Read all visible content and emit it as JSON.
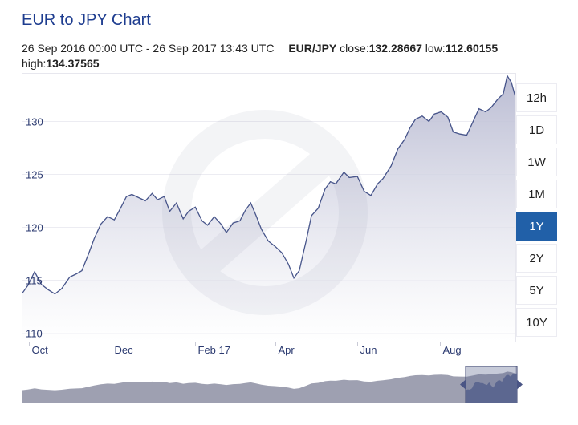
{
  "title": "EUR to JPY Chart",
  "info": {
    "range_text": "26 Sep 2016 00:00 UTC - 26 Sep 2017 13:43 UTC",
    "pair": "EUR/JPY",
    "close_label": "close:",
    "close_value": "132.28667",
    "low_label": "low:",
    "low_value": "112.60155",
    "high_label": "high:",
    "high_value": "134.37565"
  },
  "range_buttons": [
    {
      "label": "12h",
      "active": false
    },
    {
      "label": "1D",
      "active": false
    },
    {
      "label": "1W",
      "active": false
    },
    {
      "label": "1M",
      "active": false
    },
    {
      "label": "1Y",
      "active": true
    },
    {
      "label": "2Y",
      "active": false
    },
    {
      "label": "5Y",
      "active": false
    },
    {
      "label": "10Y",
      "active": false
    }
  ],
  "colors": {
    "line": "#46548a",
    "fill_top": "#b7b9d1",
    "fill_bottom": "#ffffff",
    "active_button": "#2160a8",
    "navigator_fill": "#9ea0b1",
    "navigator_selected": "#5c6790",
    "title": "#1d3c8f"
  },
  "chart_data": {
    "type": "area",
    "series": [
      {
        "name": "EUR/JPY",
        "points": [
          [
            "2016-09-26",
            113.8
          ],
          [
            "2016-09-30",
            114.5
          ],
          [
            "2016-10-05",
            115.8
          ],
          [
            "2016-10-10",
            114.6
          ],
          [
            "2016-10-15",
            114.1
          ],
          [
            "2016-10-20",
            113.7
          ],
          [
            "2016-10-25",
            114.2
          ],
          [
            "2016-10-31",
            115.3
          ],
          [
            "2016-11-05",
            115.6
          ],
          [
            "2016-11-09",
            115.9
          ],
          [
            "2016-11-14",
            117.5
          ],
          [
            "2016-11-18",
            118.9
          ],
          [
            "2016-11-23",
            120.3
          ],
          [
            "2016-11-28",
            121.0
          ],
          [
            "2016-12-03",
            120.7
          ],
          [
            "2016-12-08",
            121.9
          ],
          [
            "2016-12-12",
            122.9
          ],
          [
            "2016-12-16",
            123.1
          ],
          [
            "2016-12-21",
            122.8
          ],
          [
            "2016-12-26",
            122.5
          ],
          [
            "2016-12-31",
            123.2
          ],
          [
            "2017-01-04",
            122.6
          ],
          [
            "2017-01-09",
            122.9
          ],
          [
            "2017-01-13",
            121.5
          ],
          [
            "2017-01-18",
            122.3
          ],
          [
            "2017-01-23",
            120.8
          ],
          [
            "2017-01-27",
            121.5
          ],
          [
            "2017-02-01",
            121.9
          ],
          [
            "2017-02-06",
            120.6
          ],
          [
            "2017-02-10",
            120.2
          ],
          [
            "2017-02-15",
            121.0
          ],
          [
            "2017-02-20",
            120.3
          ],
          [
            "2017-02-24",
            119.5
          ],
          [
            "2017-03-01",
            120.4
          ],
          [
            "2017-03-06",
            120.6
          ],
          [
            "2017-03-10",
            121.6
          ],
          [
            "2017-03-14",
            122.3
          ],
          [
            "2017-03-18",
            121.1
          ],
          [
            "2017-03-22",
            119.8
          ],
          [
            "2017-03-27",
            118.7
          ],
          [
            "2017-04-01",
            118.2
          ],
          [
            "2017-04-06",
            117.6
          ],
          [
            "2017-04-11",
            116.5
          ],
          [
            "2017-04-15",
            115.2
          ],
          [
            "2017-04-19",
            115.9
          ],
          [
            "2017-04-24",
            118.7
          ],
          [
            "2017-04-28",
            121.1
          ],
          [
            "2017-05-03",
            121.8
          ],
          [
            "2017-05-08",
            123.6
          ],
          [
            "2017-05-12",
            124.3
          ],
          [
            "2017-05-16",
            124.1
          ],
          [
            "2017-05-22",
            125.2
          ],
          [
            "2017-05-26",
            124.7
          ],
          [
            "2017-06-01",
            124.8
          ],
          [
            "2017-06-06",
            123.4
          ],
          [
            "2017-06-11",
            123.0
          ],
          [
            "2017-06-16",
            124.1
          ],
          [
            "2017-06-20",
            124.6
          ],
          [
            "2017-06-26",
            125.8
          ],
          [
            "2017-07-01",
            127.4
          ],
          [
            "2017-07-06",
            128.3
          ],
          [
            "2017-07-10",
            129.4
          ],
          [
            "2017-07-14",
            130.2
          ],
          [
            "2017-07-19",
            130.5
          ],
          [
            "2017-07-24",
            130.0
          ],
          [
            "2017-07-28",
            130.7
          ],
          [
            "2017-08-02",
            130.9
          ],
          [
            "2017-08-07",
            130.4
          ],
          [
            "2017-08-11",
            129.0
          ],
          [
            "2017-08-16",
            128.8
          ],
          [
            "2017-08-21",
            128.7
          ],
          [
            "2017-08-25",
            129.8
          ],
          [
            "2017-08-30",
            131.2
          ],
          [
            "2017-09-04",
            130.9
          ],
          [
            "2017-09-08",
            131.3
          ],
          [
            "2017-09-13",
            132.1
          ],
          [
            "2017-09-17",
            132.6
          ],
          [
            "2017-09-20",
            134.3
          ],
          [
            "2017-09-23",
            133.7
          ],
          [
            "2017-09-26",
            132.3
          ]
        ]
      }
    ],
    "y_ticks": [
      110,
      115,
      120,
      125,
      130
    ],
    "x_ticks": [
      {
        "date": "2016-10-01",
        "label": "Oct"
      },
      {
        "date": "2016-12-01",
        "label": "Dec"
      },
      {
        "date": "2017-02-01",
        "label": "Feb 17"
      },
      {
        "date": "2017-04-01",
        "label": "Apr"
      },
      {
        "date": "2017-06-01",
        "label": "Jun"
      },
      {
        "date": "2017-08-01",
        "label": "Aug"
      }
    ],
    "ylim": [
      109.2,
      134.5
    ],
    "xlim": [
      "2016-09-26",
      "2017-09-26"
    ],
    "grid": true,
    "navigator": {
      "selected_range": [
        "2016-09-26",
        "2017-09-26"
      ]
    }
  }
}
